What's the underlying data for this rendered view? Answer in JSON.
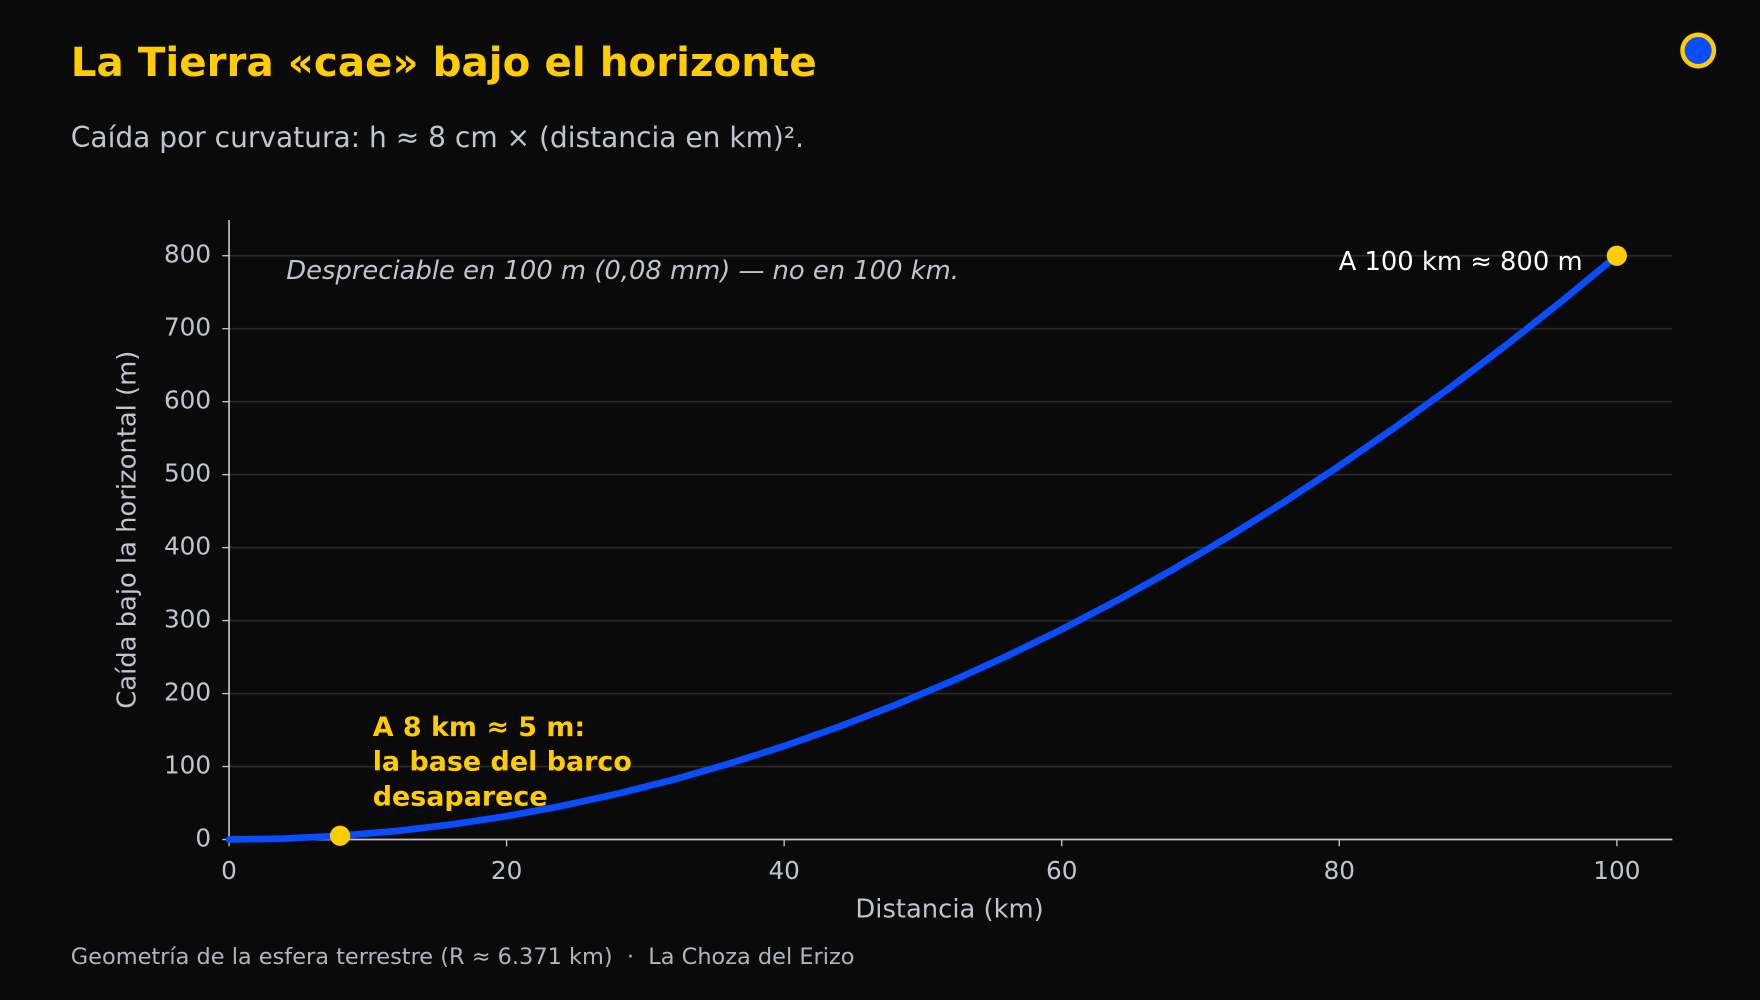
{
  "chart_data": {
    "type": "line",
    "title": "La Tierra «cae» bajo el horizonte",
    "subtitle": "Caída por curvatura: h ≈ 8 cm × (distancia en km)².",
    "x_label": "Distancia (km)",
    "y_label": "Caída bajo la horizontal (m)",
    "footer": "Geometría de la esfera terrestre (R ≈ 6.371 km)  ·  La Choza del Erizo",
    "annotations": {
      "note": "Despreciable en 100 m (0,08 mm) — no en 100 km.",
      "far": "A 100 km ≈ 800 m",
      "near": [
        "A 8 km ≈ 5 m:",
        "la base del barco",
        "desaparece"
      ]
    },
    "x": [
      0,
      4,
      8,
      12,
      16,
      20,
      24,
      28,
      32,
      36,
      40,
      44,
      48,
      52,
      56,
      60,
      64,
      68,
      72,
      76,
      80,
      84,
      88,
      92,
      96,
      100
    ],
    "series": [
      {
        "color": "#0a4dff",
        "values": [
          0,
          1.28,
          5.12,
          11.52,
          20.48,
          32,
          46.08,
          62.72,
          81.92,
          103.68,
          128,
          154.88,
          184.32,
          216.32,
          250.88,
          288,
          327.68,
          369.92,
          414.72,
          462.08,
          512,
          564.48,
          619.52,
          677.12,
          737.28,
          800
        ]
      }
    ],
    "points": {
      "color": "#ffcc00",
      "x": [
        8,
        100
      ],
      "values": [
        5.12,
        800
      ]
    },
    "xlim": [
      0,
      104
    ],
    "ylim": [
      0,
      849
    ],
    "xticks": [
      0,
      20,
      40,
      60,
      80,
      100
    ],
    "yticks": [
      0,
      100,
      200,
      300,
      400,
      500,
      600,
      700,
      800
    ],
    "grid": true
  }
}
